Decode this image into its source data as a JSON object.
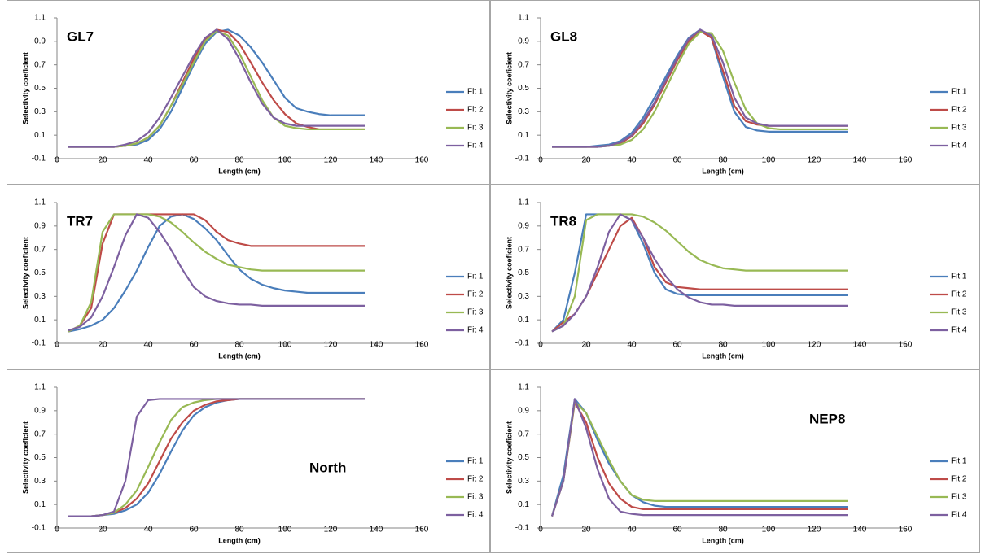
{
  "chart_data": [
    {
      "type": "line",
      "title": "GL7",
      "x_label": "Length (cm)",
      "y_label": "Selectivity coeficient",
      "x": [
        5,
        10,
        15,
        20,
        25,
        30,
        35,
        40,
        45,
        50,
        55,
        60,
        65,
        70,
        75,
        80,
        85,
        90,
        95,
        100,
        105,
        110,
        115,
        120,
        125,
        130,
        135
      ],
      "xlim": [
        0,
        160
      ],
      "xticks": [
        0,
        20,
        40,
        60,
        80,
        100,
        120,
        140,
        160
      ],
      "ylim": [
        -0.1,
        1.1
      ],
      "yticks": [
        -0.1,
        0.1,
        0.3,
        0.5,
        0.7,
        0.9,
        1.1
      ],
      "series": [
        {
          "name": "Fit 1",
          "color": "#4a7ebb",
          "values": [
            0,
            0,
            0,
            0,
            0,
            0.01,
            0.02,
            0.06,
            0.15,
            0.3,
            0.5,
            0.7,
            0.88,
            0.98,
            1.0,
            0.95,
            0.85,
            0.72,
            0.57,
            0.42,
            0.33,
            0.3,
            0.28,
            0.27,
            0.27,
            0.27,
            0.27
          ]
        },
        {
          "name": "Fit 2",
          "color": "#be4b48",
          "values": [
            0,
            0,
            0,
            0,
            0,
            0.01,
            0.03,
            0.08,
            0.18,
            0.35,
            0.55,
            0.75,
            0.92,
            1.0,
            0.98,
            0.88,
            0.72,
            0.55,
            0.4,
            0.28,
            0.2,
            0.17,
            0.15,
            0.15,
            0.15,
            0.15,
            0.15
          ]
        },
        {
          "name": "Fit 3",
          "color": "#98b954",
          "values": [
            0,
            0,
            0,
            0,
            0,
            0.01,
            0.03,
            0.08,
            0.18,
            0.35,
            0.53,
            0.72,
            0.9,
            0.99,
            0.95,
            0.8,
            0.6,
            0.4,
            0.25,
            0.18,
            0.16,
            0.15,
            0.15,
            0.15,
            0.15,
            0.15,
            0.15
          ]
        },
        {
          "name": "Fit 4",
          "color": "#7d60a0",
          "values": [
            0,
            0,
            0,
            0,
            0,
            0.02,
            0.05,
            0.12,
            0.25,
            0.42,
            0.6,
            0.78,
            0.93,
            1.0,
            0.92,
            0.75,
            0.55,
            0.37,
            0.25,
            0.2,
            0.18,
            0.18,
            0.18,
            0.18,
            0.18,
            0.18,
            0.18
          ]
        }
      ]
    },
    {
      "type": "line",
      "title": "GL8",
      "x_label": "Length (cm)",
      "y_label": "Selectivity coeficient",
      "x": [
        5,
        10,
        15,
        20,
        25,
        30,
        35,
        40,
        45,
        50,
        55,
        60,
        65,
        70,
        75,
        80,
        85,
        90,
        95,
        100,
        105,
        110,
        115,
        120,
        125,
        130,
        135
      ],
      "xlim": [
        0,
        160
      ],
      "xticks": [
        0,
        20,
        40,
        60,
        80,
        100,
        120,
        140,
        160
      ],
      "ylim": [
        -0.1,
        1.1
      ],
      "yticks": [
        -0.1,
        0.1,
        0.3,
        0.5,
        0.7,
        0.9,
        1.1
      ],
      "series": [
        {
          "name": "Fit 1",
          "color": "#4a7ebb",
          "values": [
            0,
            0,
            0,
            0,
            0.01,
            0.02,
            0.05,
            0.12,
            0.25,
            0.42,
            0.6,
            0.78,
            0.93,
            1.0,
            0.93,
            0.6,
            0.3,
            0.17,
            0.14,
            0.13,
            0.13,
            0.13,
            0.13,
            0.13,
            0.13,
            0.13,
            0.13
          ]
        },
        {
          "name": "Fit 2",
          "color": "#be4b48",
          "values": [
            0,
            0,
            0,
            0,
            0,
            0.01,
            0.03,
            0.09,
            0.2,
            0.36,
            0.55,
            0.74,
            0.9,
            0.99,
            0.93,
            0.65,
            0.35,
            0.22,
            0.19,
            0.18,
            0.18,
            0.18,
            0.18,
            0.18,
            0.18,
            0.18,
            0.18
          ]
        },
        {
          "name": "Fit 3",
          "color": "#98b954",
          "values": [
            0,
            0,
            0,
            0,
            0,
            0.01,
            0.02,
            0.06,
            0.15,
            0.3,
            0.5,
            0.7,
            0.88,
            0.98,
            0.97,
            0.82,
            0.55,
            0.32,
            0.2,
            0.16,
            0.15,
            0.15,
            0.15,
            0.15,
            0.15,
            0.15,
            0.15
          ]
        },
        {
          "name": "Fit 4",
          "color": "#7d60a0",
          "values": [
            0,
            0,
            0,
            0,
            0,
            0.01,
            0.04,
            0.1,
            0.22,
            0.38,
            0.57,
            0.76,
            0.92,
            1.0,
            0.95,
            0.72,
            0.42,
            0.25,
            0.2,
            0.18,
            0.18,
            0.18,
            0.18,
            0.18,
            0.18,
            0.18,
            0.18
          ]
        }
      ]
    },
    {
      "type": "line",
      "title": "TR7",
      "x_label": "Length (cm)",
      "y_label": "Selectivity coeficient",
      "x": [
        5,
        10,
        15,
        20,
        25,
        30,
        35,
        40,
        45,
        50,
        55,
        60,
        65,
        70,
        75,
        80,
        85,
        90,
        95,
        100,
        105,
        110,
        115,
        120,
        125,
        130,
        135
      ],
      "xlim": [
        0,
        160
      ],
      "xticks": [
        0,
        20,
        40,
        60,
        80,
        100,
        120,
        140,
        160
      ],
      "ylim": [
        -0.1,
        1.1
      ],
      "yticks": [
        -0.1,
        0.1,
        0.3,
        0.5,
        0.7,
        0.9,
        1.1
      ],
      "series": [
        {
          "name": "Fit 1",
          "color": "#4a7ebb",
          "values": [
            0,
            0.02,
            0.05,
            0.1,
            0.2,
            0.35,
            0.52,
            0.72,
            0.9,
            0.98,
            1.0,
            0.96,
            0.88,
            0.78,
            0.65,
            0.53,
            0.45,
            0.4,
            0.37,
            0.35,
            0.34,
            0.33,
            0.33,
            0.33,
            0.33,
            0.33,
            0.33
          ]
        },
        {
          "name": "Fit 2",
          "color": "#be4b48",
          "values": [
            0,
            0.05,
            0.2,
            0.75,
            1.0,
            1.0,
            1.0,
            1.0,
            1.0,
            1.0,
            1.0,
            1.0,
            0.95,
            0.85,
            0.78,
            0.75,
            0.73,
            0.73,
            0.73,
            0.73,
            0.73,
            0.73,
            0.73,
            0.73,
            0.73,
            0.73,
            0.73
          ]
        },
        {
          "name": "Fit 3",
          "color": "#98b954",
          "values": [
            0,
            0.05,
            0.25,
            0.85,
            1.0,
            1.0,
            1.0,
            1.0,
            0.98,
            0.93,
            0.85,
            0.76,
            0.68,
            0.62,
            0.57,
            0.55,
            0.53,
            0.52,
            0.52,
            0.52,
            0.52,
            0.52,
            0.52,
            0.52,
            0.52,
            0.52,
            0.52
          ]
        },
        {
          "name": "Fit 4",
          "color": "#7d60a0",
          "values": [
            0.01,
            0.04,
            0.12,
            0.3,
            0.55,
            0.82,
            1.0,
            0.97,
            0.85,
            0.7,
            0.53,
            0.38,
            0.3,
            0.26,
            0.24,
            0.23,
            0.23,
            0.22,
            0.22,
            0.22,
            0.22,
            0.22,
            0.22,
            0.22,
            0.22,
            0.22,
            0.22
          ]
        }
      ]
    },
    {
      "type": "line",
      "title": "TR8",
      "x_label": "Length (cm)",
      "y_label": "Selectivity coeficient",
      "x": [
        5,
        10,
        15,
        20,
        25,
        30,
        35,
        40,
        45,
        50,
        55,
        60,
        65,
        70,
        75,
        80,
        85,
        90,
        95,
        100,
        105,
        110,
        115,
        120,
        125,
        130,
        135
      ],
      "xlim": [
        0,
        160
      ],
      "xticks": [
        0,
        20,
        40,
        60,
        80,
        100,
        120,
        140,
        160
      ],
      "ylim": [
        -0.1,
        1.1
      ],
      "yticks": [
        -0.1,
        0.1,
        0.3,
        0.5,
        0.7,
        0.9,
        1.1
      ],
      "series": [
        {
          "name": "Fit 1",
          "color": "#4a7ebb",
          "values": [
            0,
            0.1,
            0.5,
            1.0,
            1.0,
            1.0,
            1.0,
            0.95,
            0.75,
            0.5,
            0.36,
            0.32,
            0.31,
            0.31,
            0.31,
            0.31,
            0.31,
            0.31,
            0.31,
            0.31,
            0.31,
            0.31,
            0.31,
            0.31,
            0.31,
            0.31,
            0.31
          ]
        },
        {
          "name": "Fit 2",
          "color": "#be4b48",
          "values": [
            0,
            0.08,
            0.15,
            0.3,
            0.5,
            0.7,
            0.9,
            0.97,
            0.8,
            0.55,
            0.42,
            0.38,
            0.37,
            0.36,
            0.36,
            0.36,
            0.36,
            0.36,
            0.36,
            0.36,
            0.36,
            0.36,
            0.36,
            0.36,
            0.36,
            0.36,
            0.36
          ]
        },
        {
          "name": "Fit 3",
          "color": "#98b954",
          "values": [
            0,
            0.05,
            0.3,
            0.95,
            1.0,
            1.0,
            1.0,
            1.0,
            0.98,
            0.93,
            0.86,
            0.77,
            0.68,
            0.61,
            0.57,
            0.54,
            0.53,
            0.52,
            0.52,
            0.52,
            0.52,
            0.52,
            0.52,
            0.52,
            0.52,
            0.52,
            0.52
          ]
        },
        {
          "name": "Fit 4",
          "color": "#7d60a0",
          "values": [
            0,
            0.05,
            0.15,
            0.3,
            0.55,
            0.85,
            1.0,
            0.95,
            0.8,
            0.62,
            0.47,
            0.36,
            0.29,
            0.25,
            0.23,
            0.23,
            0.22,
            0.22,
            0.22,
            0.22,
            0.22,
            0.22,
            0.22,
            0.22,
            0.22,
            0.22,
            0.22
          ]
        }
      ]
    },
    {
      "type": "line",
      "title": "North",
      "x_label": "Length (cm)",
      "y_label": "Selectivity coeficient",
      "x": [
        5,
        10,
        15,
        20,
        25,
        30,
        35,
        40,
        45,
        50,
        55,
        60,
        65,
        70,
        75,
        80,
        85,
        90,
        95,
        100,
        105,
        110,
        115,
        120,
        125,
        130,
        135
      ],
      "xlim": [
        0,
        160
      ],
      "xticks": [
        0,
        20,
        40,
        60,
        80,
        100,
        120,
        140,
        160
      ],
      "ylim": [
        -0.1,
        1.1
      ],
      "yticks": [
        -0.1,
        0.1,
        0.3,
        0.5,
        0.7,
        0.9,
        1.1
      ],
      "series": [
        {
          "name": "Fit 1",
          "color": "#4a7ebb",
          "values": [
            0,
            0,
            0,
            0.01,
            0.02,
            0.05,
            0.1,
            0.2,
            0.36,
            0.55,
            0.73,
            0.86,
            0.93,
            0.97,
            0.99,
            1.0,
            1.0,
            1.0,
            1.0,
            1.0,
            1.0,
            1.0,
            1.0,
            1.0,
            1.0,
            1.0,
            1.0
          ]
        },
        {
          "name": "Fit 2",
          "color": "#be4b48",
          "values": [
            0,
            0,
            0,
            0.01,
            0.03,
            0.07,
            0.15,
            0.28,
            0.47,
            0.66,
            0.8,
            0.9,
            0.95,
            0.98,
            0.99,
            1.0,
            1.0,
            1.0,
            1.0,
            1.0,
            1.0,
            1.0,
            1.0,
            1.0,
            1.0,
            1.0,
            1.0
          ]
        },
        {
          "name": "Fit 3",
          "color": "#98b954",
          "values": [
            0,
            0,
            0,
            0.01,
            0.03,
            0.1,
            0.22,
            0.42,
            0.63,
            0.82,
            0.93,
            0.97,
            0.99,
            1.0,
            1.0,
            1.0,
            1.0,
            1.0,
            1.0,
            1.0,
            1.0,
            1.0,
            1.0,
            1.0,
            1.0,
            1.0,
            1.0
          ]
        },
        {
          "name": "Fit 4",
          "color": "#7d60a0",
          "values": [
            0,
            0,
            0,
            0.01,
            0.04,
            0.3,
            0.85,
            0.99,
            1.0,
            1.0,
            1.0,
            1.0,
            1.0,
            1.0,
            1.0,
            1.0,
            1.0,
            1.0,
            1.0,
            1.0,
            1.0,
            1.0,
            1.0,
            1.0,
            1.0,
            1.0,
            1.0
          ]
        }
      ]
    },
    {
      "type": "line",
      "title": "NEP8",
      "x_label": "Length (cm)",
      "y_label": "Selectivity coeficient",
      "x": [
        5,
        10,
        15,
        20,
        25,
        30,
        35,
        40,
        45,
        50,
        55,
        60,
        65,
        70,
        75,
        80,
        85,
        90,
        95,
        100,
        105,
        110,
        115,
        120,
        125,
        130,
        135
      ],
      "xlim": [
        0,
        160
      ],
      "xticks": [
        0,
        20,
        40,
        60,
        80,
        100,
        120,
        140,
        160
      ],
      "ylim": [
        -0.1,
        1.1
      ],
      "yticks": [
        -0.1,
        0.1,
        0.3,
        0.5,
        0.7,
        0.9,
        1.1
      ],
      "series": [
        {
          "name": "Fit 1",
          "color": "#4a7ebb",
          "values": [
            0,
            0.35,
            1.0,
            0.88,
            0.65,
            0.45,
            0.3,
            0.18,
            0.12,
            0.09,
            0.08,
            0.08,
            0.08,
            0.08,
            0.08,
            0.08,
            0.08,
            0.08,
            0.08,
            0.08,
            0.08,
            0.08,
            0.08,
            0.08,
            0.08,
            0.08,
            0.08
          ]
        },
        {
          "name": "Fit 2",
          "color": "#be4b48",
          "values": [
            0,
            0.3,
            0.97,
            0.8,
            0.5,
            0.28,
            0.15,
            0.08,
            0.06,
            0.06,
            0.06,
            0.06,
            0.06,
            0.06,
            0.06,
            0.06,
            0.06,
            0.06,
            0.06,
            0.06,
            0.06,
            0.06,
            0.06,
            0.06,
            0.06,
            0.06,
            0.06
          ]
        },
        {
          "name": "Fit 3",
          "color": "#98b954",
          "values": [
            0,
            0.3,
            0.98,
            0.88,
            0.68,
            0.48,
            0.3,
            0.18,
            0.14,
            0.13,
            0.13,
            0.13,
            0.13,
            0.13,
            0.13,
            0.13,
            0.13,
            0.13,
            0.13,
            0.13,
            0.13,
            0.13,
            0.13,
            0.13,
            0.13,
            0.13,
            0.13
          ]
        },
        {
          "name": "Fit 4",
          "color": "#7d60a0",
          "values": [
            0,
            0.3,
            1.0,
            0.75,
            0.4,
            0.15,
            0.04,
            0.02,
            0.01,
            0.01,
            0.01,
            0.01,
            0.01,
            0.01,
            0.01,
            0.01,
            0.01,
            0.01,
            0.01,
            0.01,
            0.01,
            0.01,
            0.01,
            0.01,
            0.01,
            0.01,
            0.01
          ]
        }
      ]
    }
  ]
}
